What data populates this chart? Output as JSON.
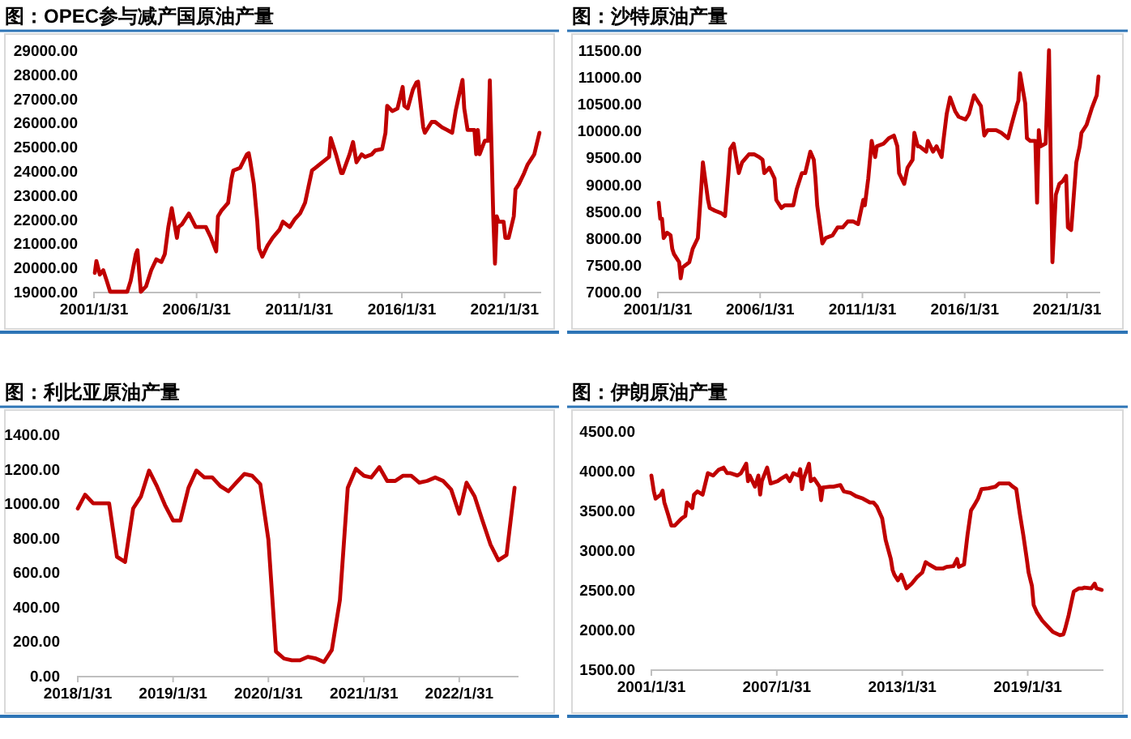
{
  "chart_data": [
    {
      "type": "line",
      "title": "图：OPEC参与减产国原油产量",
      "color": "#c00000",
      "x": [
        "2001-02",
        "2001-03",
        "2001-05",
        "2001-07",
        "2001-09",
        "2001-11",
        "2002-09",
        "2002-11",
        "2003-02",
        "2003-03",
        "2003-05",
        "2003-08",
        "2003-11",
        "2004-02",
        "2004-05",
        "2004-07",
        "2004-09",
        "2004-11",
        "2005-02",
        "2005-03",
        "2005-05",
        "2005-09",
        "2006-01",
        "2006-03",
        "2006-07",
        "2006-10",
        "2007-01",
        "2007-02",
        "2007-04",
        "2007-08",
        "2007-10",
        "2007-11",
        "2008-03",
        "2008-07",
        "2008-08",
        "2008-09",
        "2008-11",
        "2009-01",
        "2009-02",
        "2009-04",
        "2009-07",
        "2009-10",
        "2010-02",
        "2010-04",
        "2010-08",
        "2010-11",
        "2011-02",
        "2011-05",
        "2011-07",
        "2011-09",
        "2011-11",
        "2012-03",
        "2012-07",
        "2012-08",
        "2012-11",
        "2013-02",
        "2013-03",
        "2013-07",
        "2013-09",
        "2013-11",
        "2014-02",
        "2014-04",
        "2014-08",
        "2014-10",
        "2015-02",
        "2015-04",
        "2015-05",
        "2015-08",
        "2015-11",
        "2016-02",
        "2016-03",
        "2016-05",
        "2016-08",
        "2016-10",
        "2016-11",
        "2017-02",
        "2017-03",
        "2017-07",
        "2017-09",
        "2018-01",
        "2018-04",
        "2018-07",
        "2018-09",
        "2018-11",
        "2019-01",
        "2019-02",
        "2019-04",
        "2019-07",
        "2019-08",
        "2019-09",
        "2019-10",
        "2019-11",
        "2020-02",
        "2020-04",
        "2020-05",
        "2020-07",
        "2020-08",
        "2020-09",
        "2020-10",
        "2021-01",
        "2021-02",
        "2021-04",
        "2021-07",
        "2021-08",
        "2021-10",
        "2022-01",
        "2022-03",
        "2022-07",
        "2022-10"
      ],
      "values": [
        19780,
        20270,
        19710,
        19890,
        19450,
        19000,
        19000,
        19450,
        20560,
        20720,
        19000,
        19220,
        19890,
        20340,
        20230,
        20560,
        21680,
        22460,
        21230,
        21680,
        21790,
        22240,
        21680,
        21680,
        21680,
        21230,
        20670,
        22120,
        22350,
        22680,
        23690,
        24020,
        24130,
        24690,
        24740,
        24360,
        23460,
        21900,
        20790,
        20450,
        20900,
        21230,
        21570,
        21900,
        21680,
        22010,
        22240,
        22680,
        23350,
        24020,
        24130,
        24360,
        24580,
        25360,
        24690,
        23910,
        23910,
        24690,
        25200,
        24360,
        24690,
        24580,
        24690,
        24850,
        24910,
        25580,
        26700,
        26480,
        26590,
        27480,
        26700,
        26590,
        27370,
        27660,
        27700,
        25810,
        25580,
        26030,
        26030,
        25810,
        25700,
        25580,
        26480,
        27150,
        27770,
        26590,
        25700,
        25700,
        25700,
        24690,
        25700,
        24690,
        25250,
        25250,
        27750,
        22120,
        20160,
        22120,
        21900,
        21900,
        21230,
        21230,
        22120,
        23240,
        23460,
        23910,
        24250,
        24690,
        25580
      ],
      "xlim": [
        "2001-01-31",
        "2022-11-15"
      ],
      "xticks": [
        {
          "value": "2001-01-31",
          "label": "2001/1/31"
        },
        {
          "value": "2006-01-31",
          "label": "2006/1/31"
        },
        {
          "value": "2011-01-31",
          "label": "2011/1/31"
        },
        {
          "value": "2016-01-31",
          "label": "2016/1/31"
        },
        {
          "value": "2021-01-31",
          "label": "2021/1/31"
        }
      ],
      "ylim": [
        19000,
        29000
      ],
      "yticks": [
        {
          "value": 19000,
          "label": "19000.00"
        },
        {
          "value": 20000,
          "label": "20000.00"
        },
        {
          "value": 21000,
          "label": "21000.00"
        },
        {
          "value": 22000,
          "label": "22000.00"
        },
        {
          "value": 23000,
          "label": "23000.00"
        },
        {
          "value": 24000,
          "label": "24000.00"
        },
        {
          "value": 25000,
          "label": "25000.00"
        },
        {
          "value": 26000,
          "label": "26000.00"
        },
        {
          "value": 27000,
          "label": "27000.00"
        },
        {
          "value": 28000,
          "label": "28000.00"
        },
        {
          "value": 29000,
          "label": "29000.00"
        }
      ]
    },
    {
      "type": "line",
      "title": "图：沙特原油产量",
      "color": "#c00000",
      "x": [
        "2001-02",
        "2001-03",
        "2001-04",
        "2001-05",
        "2001-07",
        "2001-09",
        "2001-10",
        "2001-11",
        "2002-02",
        "2002-03",
        "2002-04",
        "2002-08",
        "2002-10",
        "2003-01",
        "2003-03",
        "2003-04",
        "2003-07",
        "2003-08",
        "2003-11",
        "2004-03",
        "2004-05",
        "2004-07",
        "2004-08",
        "2004-10",
        "2005-01",
        "2005-03",
        "2005-07",
        "2005-10",
        "2006-01",
        "2006-03",
        "2006-04",
        "2006-07",
        "2006-10",
        "2006-11",
        "2007-02",
        "2007-04",
        "2007-09",
        "2007-11",
        "2008-02",
        "2008-04",
        "2008-07",
        "2008-09",
        "2008-10",
        "2008-11",
        "2009-02",
        "2009-04",
        "2009-08",
        "2009-11",
        "2010-02",
        "2010-05",
        "2010-08",
        "2010-11",
        "2011-02",
        "2011-03",
        "2011-05",
        "2011-07",
        "2011-09",
        "2011-10",
        "2012-02",
        "2012-05",
        "2012-08",
        "2012-10",
        "2012-11",
        "2013-02",
        "2013-04",
        "2013-07",
        "2013-08",
        "2013-10",
        "2013-11",
        "2014-03",
        "2014-04",
        "2014-07",
        "2014-09",
        "2014-12",
        "2015-01",
        "2015-03",
        "2015-05",
        "2015-08",
        "2015-10",
        "2016-02",
        "2016-04",
        "2016-07",
        "2016-08",
        "2016-11",
        "2017-01",
        "2017-03",
        "2017-05",
        "2017-08",
        "2017-11",
        "2018-03",
        "2018-05",
        "2018-08",
        "2018-09",
        "2018-10",
        "2019-01",
        "2019-02",
        "2019-04",
        "2019-07",
        "2019-08",
        "2019-09",
        "2019-10",
        "2020-01",
        "2020-03",
        "2020-04",
        "2020-05",
        "2020-07",
        "2020-09",
        "2020-11",
        "2021-01",
        "2021-02",
        "2021-04",
        "2021-07",
        "2021-09",
        "2021-10",
        "2022-01",
        "2022-04",
        "2022-07",
        "2022-08"
      ],
      "values": [
        8660,
        8360,
        8360,
        8000,
        8100,
        8050,
        7800,
        7700,
        7550,
        7250,
        7450,
        7550,
        7800,
        8000,
        8910,
        9410,
        8710,
        8560,
        8510,
        8460,
        8410,
        9210,
        9660,
        9760,
        9210,
        9410,
        9560,
        9560,
        9510,
        9460,
        9210,
        9310,
        9110,
        8710,
        8560,
        8610,
        8610,
        8910,
        9210,
        9210,
        9610,
        9460,
        9110,
        8610,
        7900,
        8000,
        8050,
        8200,
        8200,
        8310,
        8310,
        8260,
        8710,
        8610,
        9110,
        9810,
        9510,
        9710,
        9760,
        9860,
        9910,
        9710,
        9210,
        9010,
        9310,
        9460,
        9960,
        9710,
        9710,
        9610,
        9810,
        9610,
        9710,
        9510,
        9810,
        10310,
        10620,
        10360,
        10260,
        10210,
        10310,
        10660,
        10610,
        10460,
        9910,
        10010,
        10010,
        10010,
        9960,
        9860,
        10110,
        10460,
        10560,
        11070,
        10510,
        9860,
        9810,
        9810,
        8660,
        10010,
        9710,
        9760,
        11500,
        9410,
        7550,
        8810,
        9010,
        9060,
        9160,
        8200,
        8150,
        9410,
        9710,
        9960,
        10110,
        10410,
        10660,
        11010
      ],
      "xlim": [
        "2001-01-31",
        "2022-09-15"
      ],
      "xticks": [
        {
          "value": "2001-01-31",
          "label": "2001/1/31"
        },
        {
          "value": "2006-01-31",
          "label": "2006/1/31"
        },
        {
          "value": "2011-01-31",
          "label": "2011/1/31"
        },
        {
          "value": "2016-01-31",
          "label": "2016/1/31"
        },
        {
          "value": "2021-01-31",
          "label": "2021/1/31"
        }
      ],
      "ylim": [
        7000,
        11500
      ],
      "yticks": [
        {
          "value": 7000,
          "label": "7000.00"
        },
        {
          "value": 7500,
          "label": "7500.00"
        },
        {
          "value": 8000,
          "label": "8000.00"
        },
        {
          "value": 8500,
          "label": "8500.00"
        },
        {
          "value": 9000,
          "label": "9000.00"
        },
        {
          "value": 9500,
          "label": "9500.00"
        },
        {
          "value": 10000,
          "label": "10000.00"
        },
        {
          "value": 10500,
          "label": "10500.00"
        },
        {
          "value": 11000,
          "label": "11000.00"
        },
        {
          "value": 11500,
          "label": "11500.00"
        }
      ]
    },
    {
      "type": "line",
      "title": "图：利比亚原油产量",
      "color": "#c00000",
      "x": [
        "2018-01-31",
        "2018-02-28",
        "2018-03-31",
        "2018-04-30",
        "2018-05-31",
        "2018-06-30",
        "2018-07-31",
        "2018-08-31",
        "2018-09-30",
        "2018-10-31",
        "2018-11-30",
        "2018-12-31",
        "2019-01-31",
        "2019-02-28",
        "2019-03-31",
        "2019-04-30",
        "2019-05-31",
        "2019-06-30",
        "2019-07-31",
        "2019-08-31",
        "2019-09-30",
        "2019-10-31",
        "2019-11-30",
        "2019-12-31",
        "2020-01-31",
        "2020-02-29",
        "2020-03-31",
        "2020-04-30",
        "2020-05-31",
        "2020-06-30",
        "2020-07-31",
        "2020-08-31",
        "2020-09-30",
        "2020-10-31",
        "2020-11-30",
        "2020-12-31",
        "2021-01-31",
        "2021-02-28",
        "2021-03-31",
        "2021-04-30",
        "2021-05-31",
        "2021-06-30",
        "2021-07-31",
        "2021-08-31",
        "2021-09-30",
        "2021-10-31",
        "2021-11-30",
        "2021-12-31",
        "2022-01-31",
        "2022-02-28",
        "2022-03-31",
        "2022-04-30",
        "2022-05-31",
        "2022-06-30",
        "2022-07-31",
        "2022-08-31"
      ],
      "values": [
        970,
        1050,
        1000,
        1000,
        1000,
        690,
        660,
        970,
        1040,
        1190,
        1100,
        990,
        900,
        900,
        1090,
        1190,
        1150,
        1150,
        1100,
        1070,
        1120,
        1170,
        1160,
        1110,
        790,
        140,
        100,
        90,
        90,
        110,
        100,
        80,
        150,
        440,
        1090,
        1200,
        1160,
        1150,
        1210,
        1130,
        1130,
        1160,
        1160,
        1120,
        1130,
        1150,
        1130,
        1080,
        940,
        1120,
        1040,
        900,
        760,
        670,
        700,
        1090
      ],
      "xlim": [
        "2018-01-31",
        "2022-09-15"
      ],
      "xticks": [
        {
          "value": "2018-01-31",
          "label": "2018/1/31"
        },
        {
          "value": "2019-01-31",
          "label": "2019/1/31"
        },
        {
          "value": "2020-01-31",
          "label": "2020/1/31"
        },
        {
          "value": "2021-01-31",
          "label": "2021/1/31"
        },
        {
          "value": "2022-01-31",
          "label": "2022/1/31"
        }
      ],
      "ylim": [
        0,
        1400
      ],
      "yticks": [
        {
          "value": 0,
          "label": "0.00"
        },
        {
          "value": 200,
          "label": "200.00"
        },
        {
          "value": 400,
          "label": "400.00"
        },
        {
          "value": 600,
          "label": "600.00"
        },
        {
          "value": 800,
          "label": "800.00"
        },
        {
          "value": 1000,
          "label": "1000.00"
        },
        {
          "value": 1200,
          "label": "1200.00"
        },
        {
          "value": 1400,
          "label": "1400.00"
        }
      ]
    },
    {
      "type": "line",
      "title": "图：伊朗原油产量",
      "color": "#c00000",
      "x": [
        "2001-01-31",
        "2001-03",
        "2001-04",
        "2001-07",
        "2001-08",
        "2001-09",
        "2001-11",
        "2002-01",
        "2002-03",
        "2002-07",
        "2002-09",
        "2002-10",
        "2003-01",
        "2003-02",
        "2003-04",
        "2003-07",
        "2003-10",
        "2004-01",
        "2004-04",
        "2004-07",
        "2004-09",
        "2004-11",
        "2005-03",
        "2005-05",
        "2005-08",
        "2005-09",
        "2005-10",
        "2006-01",
        "2006-03",
        "2006-04",
        "2006-05",
        "2006-08",
        "2006-09",
        "2006-10",
        "2007-02",
        "2007-04",
        "2007-07",
        "2007-09",
        "2007-11",
        "2008-02",
        "2008-03",
        "2008-04",
        "2008-05",
        "2008-08",
        "2008-09",
        "2008-11",
        "2009-02",
        "2009-03",
        "2009-04",
        "2009-08",
        "2009-10",
        "2010-02",
        "2010-04",
        "2010-08",
        "2010-11",
        "2011-03",
        "2011-07",
        "2011-09",
        "2011-11",
        "2012-02",
        "2012-04",
        "2012-07",
        "2012-08",
        "2012-09",
        "2012-11",
        "2013-01",
        "2013-03",
        "2013-04",
        "2013-07",
        "2013-10",
        "2014-01",
        "2014-03",
        "2014-05",
        "2014-09",
        "2015-01",
        "2015-03",
        "2015-07",
        "2015-09",
        "2015-10",
        "2016-01",
        "2016-03",
        "2016-05",
        "2016-07",
        "2016-09",
        "2016-11",
        "2017-03",
        "2017-07",
        "2017-09",
        "2018-01",
        "2018-03",
        "2018-05",
        "2018-07",
        "2018-09",
        "2018-11",
        "2019-01",
        "2019-02",
        "2019-04",
        "2019-05",
        "2019-07",
        "2019-10",
        "2020-01",
        "2020-04",
        "2020-08",
        "2020-10",
        "2020-11",
        "2021-01",
        "2021-03",
        "2021-04",
        "2021-07",
        "2021-09",
        "2021-10",
        "2022-02",
        "2022-04",
        "2022-05",
        "2022-08"
      ],
      "values": [
        3940,
        3740,
        3650,
        3700,
        3750,
        3600,
        3460,
        3310,
        3310,
        3400,
        3430,
        3600,
        3530,
        3700,
        3740,
        3700,
        3970,
        3940,
        4010,
        4040,
        3970,
        3970,
        3940,
        3970,
        4090,
        3870,
        3940,
        3800,
        3940,
        3700,
        3870,
        4040,
        3940,
        3840,
        3870,
        3900,
        3940,
        3870,
        3970,
        3940,
        4020,
        3770,
        3900,
        4090,
        3870,
        3900,
        3800,
        3630,
        3790,
        3800,
        3800,
        3820,
        3740,
        3720,
        3680,
        3650,
        3600,
        3600,
        3550,
        3400,
        3130,
        2890,
        2750,
        2690,
        2620,
        2690,
        2580,
        2520,
        2580,
        2660,
        2720,
        2850,
        2820,
        2770,
        2770,
        2790,
        2800,
        2890,
        2790,
        2820,
        3190,
        3500,
        3570,
        3650,
        3770,
        3780,
        3800,
        3840,
        3840,
        3840,
        3800,
        3770,
        3460,
        3190,
        2890,
        2720,
        2550,
        2310,
        2210,
        2110,
        2040,
        1970,
        1930,
        1940,
        2010,
        2180,
        2380,
        2480,
        2520,
        2520,
        2530,
        2520,
        2580,
        2520,
        2500
      ],
      "xlim": [
        "2001-01-31",
        "2022-09-15"
      ],
      "xticks": [
        {
          "value": "2001-01-31",
          "label": "2001/1/31"
        },
        {
          "value": "2007-01-31",
          "label": "2007/1/31"
        },
        {
          "value": "2013-01-31",
          "label": "2013/1/31"
        },
        {
          "value": "2019-01-31",
          "label": "2019/1/31"
        }
      ],
      "ylim": [
        1500,
        4500
      ],
      "yticks": [
        {
          "value": 1500,
          "label": "1500.00"
        },
        {
          "value": 2000,
          "label": "2000.00"
        },
        {
          "value": 2500,
          "label": "2500.00"
        },
        {
          "value": 3000,
          "label": "3000.00"
        },
        {
          "value": 3500,
          "label": "3500.00"
        },
        {
          "value": 4000,
          "label": "4000.00"
        },
        {
          "value": 4500,
          "label": "4500.00"
        }
      ]
    }
  ]
}
